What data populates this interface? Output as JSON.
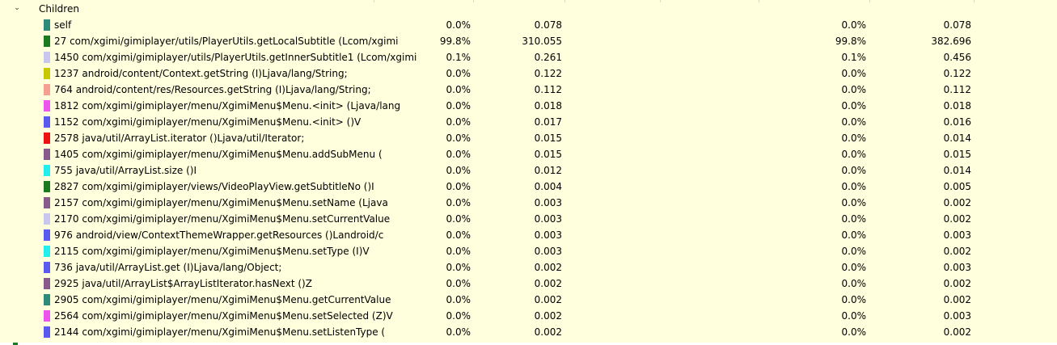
{
  "section": {
    "label": "Children",
    "chevron": "⌄"
  },
  "rows": [
    {
      "color": "#2e8b7a",
      "name": "self",
      "c1": "0.0%",
      "c2": "0.078",
      "c3": "0.0%",
      "c4": "0.078"
    },
    {
      "color": "#1b7a1b",
      "name": "27 com/xgimi/gimiplayer/utils/PlayerUtils.getLocalSubtitle (Lcom/xgimi",
      "c1": "99.8%",
      "c2": "310.055",
      "c3": "99.8%",
      "c4": "382.696"
    },
    {
      "color": "#c8c8ee",
      "name": "1450 com/xgimi/gimiplayer/utils/PlayerUtils.getInnerSubtitle1 (Lcom/xgimi",
      "c1": "0.1%",
      "c2": "0.261",
      "c3": "0.1%",
      "c4": "0.456"
    },
    {
      "color": "#c8c800",
      "name": "1237 android/content/Context.getString (I)Ljava/lang/String;",
      "c1": "0.0%",
      "c2": "0.122",
      "c3": "0.0%",
      "c4": "0.122"
    },
    {
      "color": "#f5a090",
      "name": "764 android/content/res/Resources.getString (I)Ljava/lang/String;",
      "c1": "0.0%",
      "c2": "0.112",
      "c3": "0.0%",
      "c4": "0.112"
    },
    {
      "color": "#ee55ee",
      "name": "1812 com/xgimi/gimiplayer/menu/XgimiMenu$Menu.<init> (Ljava/lang",
      "c1": "0.0%",
      "c2": "0.018",
      "c3": "0.0%",
      "c4": "0.018"
    },
    {
      "color": "#5a5aee",
      "name": "1152 com/xgimi/gimiplayer/menu/XgimiMenu$Menu.<init> ()V",
      "c1": "0.0%",
      "c2": "0.017",
      "c3": "0.0%",
      "c4": "0.016"
    },
    {
      "color": "#ee1111",
      "name": "2578 java/util/ArrayList.iterator ()Ljava/util/Iterator;",
      "c1": "0.0%",
      "c2": "0.015",
      "c3": "0.0%",
      "c4": "0.014"
    },
    {
      "color": "#8a5a8a",
      "name": "1405 com/xgimi/gimiplayer/menu/XgimiMenu$Menu.addSubMenu (",
      "c1": "0.0%",
      "c2": "0.015",
      "c3": "0.0%",
      "c4": "0.015"
    },
    {
      "color": "#22eeee",
      "name": "755 java/util/ArrayList.size ()I",
      "c1": "0.0%",
      "c2": "0.012",
      "c3": "0.0%",
      "c4": "0.014"
    },
    {
      "color": "#1b7a1b",
      "name": "2827 com/xgimi/gimiplayer/views/VideoPlayView.getSubtitleNo ()I",
      "c1": "0.0%",
      "c2": "0.004",
      "c3": "0.0%",
      "c4": "0.005"
    },
    {
      "color": "#8a5a8a",
      "name": "2157 com/xgimi/gimiplayer/menu/XgimiMenu$Menu.setName (Ljava",
      "c1": "0.0%",
      "c2": "0.003",
      "c3": "0.0%",
      "c4": "0.002"
    },
    {
      "color": "#c8c8ee",
      "name": "2170 com/xgimi/gimiplayer/menu/XgimiMenu$Menu.setCurrentValue",
      "c1": "0.0%",
      "c2": "0.003",
      "c3": "0.0%",
      "c4": "0.002"
    },
    {
      "color": "#5a5aee",
      "name": "976 android/view/ContextThemeWrapper.getResources ()Landroid/c",
      "c1": "0.0%",
      "c2": "0.003",
      "c3": "0.0%",
      "c4": "0.003"
    },
    {
      "color": "#22eeee",
      "name": "2115 com/xgimi/gimiplayer/menu/XgimiMenu$Menu.setType (I)V",
      "c1": "0.0%",
      "c2": "0.003",
      "c3": "0.0%",
      "c4": "0.002"
    },
    {
      "color": "#5a5aee",
      "name": "736 java/util/ArrayList.get (I)Ljava/lang/Object;",
      "c1": "0.0%",
      "c2": "0.002",
      "c3": "0.0%",
      "c4": "0.003"
    },
    {
      "color": "#8a5a8a",
      "name": "2925 java/util/ArrayList$ArrayListIterator.hasNext ()Z",
      "c1": "0.0%",
      "c2": "0.002",
      "c3": "0.0%",
      "c4": "0.002"
    },
    {
      "color": "#2e8b7a",
      "name": "2905 com/xgimi/gimiplayer/menu/XgimiMenu$Menu.getCurrentValue",
      "c1": "0.0%",
      "c2": "0.002",
      "c3": "0.0%",
      "c4": "0.002"
    },
    {
      "color": "#ee55ee",
      "name": "2564 com/xgimi/gimiplayer/menu/XgimiMenu$Menu.setSelected (Z)V",
      "c1": "0.0%",
      "c2": "0.002",
      "c3": "0.0%",
      "c4": "0.003"
    },
    {
      "color": "#5a5aee",
      "name": "2144 com/xgimi/gimiplayer/menu/XgimiMenu$Menu.setListenType (",
      "c1": "0.0%",
      "c2": "0.002",
      "c3": "0.0%",
      "c4": "0.002"
    }
  ]
}
